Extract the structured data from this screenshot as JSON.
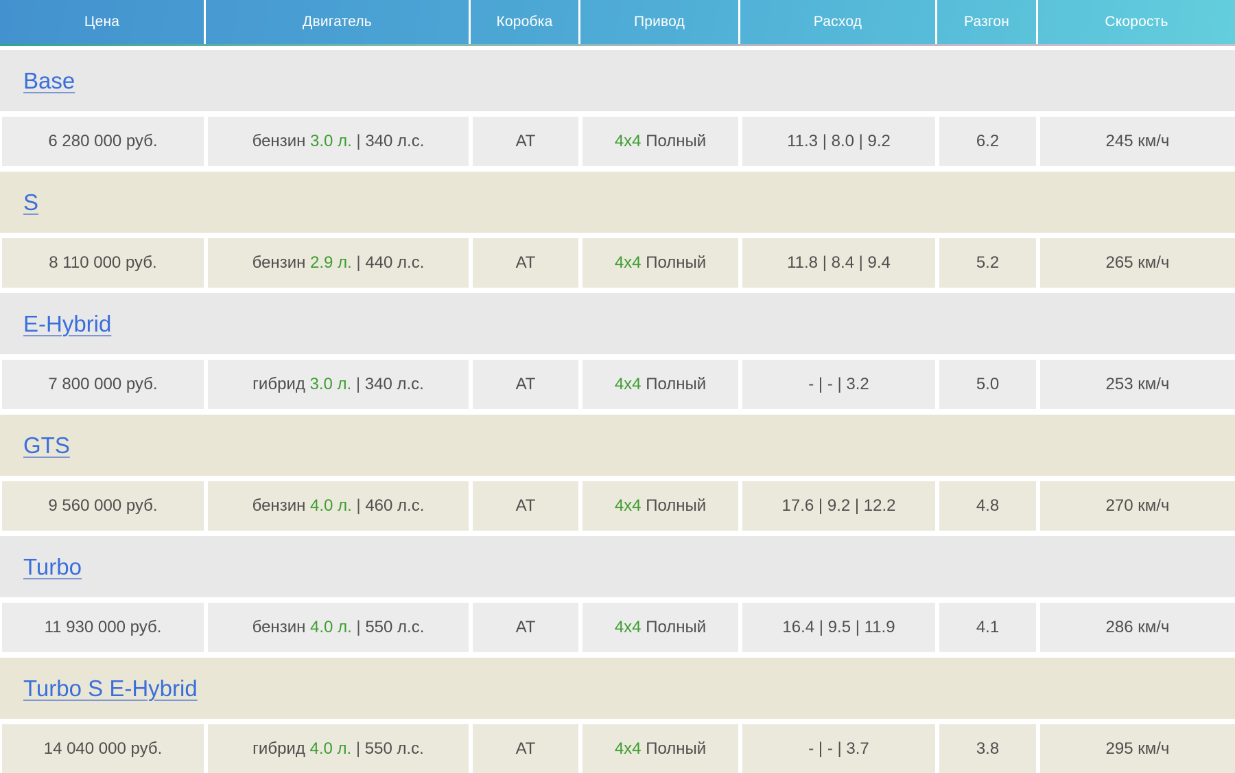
{
  "table": {
    "columns": [
      "Цена",
      "Двигатель",
      "Коробка",
      "Привод",
      "Расход",
      "Разгон",
      "Скорость"
    ],
    "pipe": "|",
    "rows": [
      {
        "trim": "Base",
        "tint": "gray",
        "price": "6 280 000 руб.",
        "fuel": "бензин",
        "volume": "3.0 л.",
        "power": "340 л.с.",
        "gearbox": "АТ",
        "drive_type": "4x4",
        "drive": "Полный",
        "consumption": "11.3 | 8.0 | 9.2",
        "acceleration": "6.2",
        "speed": "245 км/ч"
      },
      {
        "trim": "S",
        "tint": "beige",
        "price": "8 110 000 руб.",
        "fuel": "бензин",
        "volume": "2.9 л.",
        "power": "440 л.с.",
        "gearbox": "АТ",
        "drive_type": "4x4",
        "drive": "Полный",
        "consumption": "11.8 | 8.4 | 9.4",
        "acceleration": "5.2",
        "speed": "265 км/ч"
      },
      {
        "trim": "E-Hybrid",
        "tint": "gray",
        "price": "7 800 000 руб.",
        "fuel": "гибрид",
        "volume": "3.0 л.",
        "power": "340 л.с.",
        "gearbox": "АТ",
        "drive_type": "4x4",
        "drive": "Полный",
        "consumption": "- | - | 3.2",
        "acceleration": "5.0",
        "speed": "253 км/ч"
      },
      {
        "trim": "GTS",
        "tint": "beige",
        "price": "9 560 000 руб.",
        "fuel": "бензин",
        "volume": "4.0 л.",
        "power": "460 л.с.",
        "gearbox": "АТ",
        "drive_type": "4x4",
        "drive": "Полный",
        "consumption": "17.6 | 9.2 | 12.2",
        "acceleration": "4.8",
        "speed": "270 км/ч"
      },
      {
        "trim": "Turbo",
        "tint": "gray",
        "price": "11 930 000 руб.",
        "fuel": "бензин",
        "volume": "4.0 л.",
        "power": "550 л.с.",
        "gearbox": "АТ",
        "drive_type": "4x4",
        "drive": "Полный",
        "consumption": "16.4 | 9.5 | 11.9",
        "acceleration": "4.1",
        "speed": "286 км/ч"
      },
      {
        "trim": "Turbo S E-Hybrid",
        "tint": "beige",
        "price": "14 040 000 руб.",
        "fuel": "гибрид",
        "volume": "4.0 л.",
        "power": "550 л.с.",
        "gearbox": "АТ",
        "drive_type": "4x4",
        "drive": "Полный",
        "consumption": "- | - | 3.7",
        "acceleration": "3.8",
        "speed": "295 км/ч"
      }
    ]
  },
  "colors": {
    "header_gradient_left": "#4392cf",
    "header_gradient_right": "#63cedd",
    "header_underline_teal": "#2fa68e",
    "link_blue": "#3a6fdb",
    "accent_green": "#3f9d31",
    "text_gray": "#4f4f4f",
    "row_gray": "#ececec",
    "row_beige": "#ebe9db"
  }
}
